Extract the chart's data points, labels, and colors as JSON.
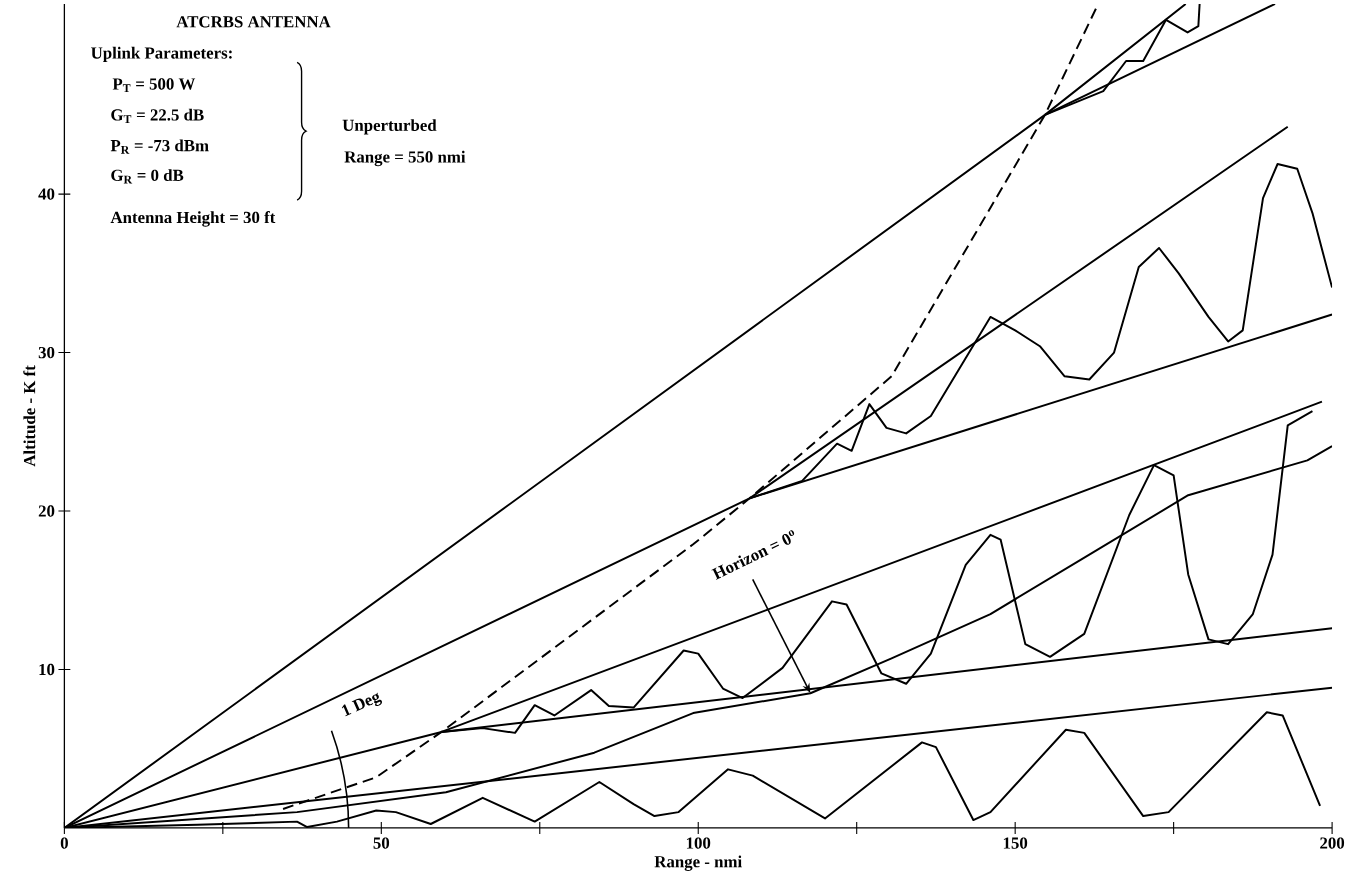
{
  "chart_data": {
    "type": "line",
    "title": "ATCRBS ANTENNA",
    "xlabel": "Range - nmi",
    "ylabel": "Altitude - K ft",
    "xlim": [
      0,
      200
    ],
    "ylim": [
      0,
      52
    ],
    "xticks": [
      0,
      {
        "value": 25,
        "label": null
      },
      50,
      {
        "value": 75,
        "label": null
      },
      100,
      {
        "value": 125,
        "label": null
      },
      150,
      {
        "value": 175,
        "label": null
      },
      200
    ],
    "yticks": [
      10,
      20,
      30,
      40
    ],
    "annotations": [
      "Uplink Parameters:",
      "P$_{T}$ = 500 W",
      "G$_{T}$ = 22.5 dB",
      "P$_{R}$ = -73 dBm",
      "G$_{R}$ = 0 dB",
      "Antenna Height = 30 ft",
      "Unperturbed",
      "Range = 550 nmi",
      "1 Deg",
      {
        "text": "Horizon = 0$^{o}$",
        "x": 117.7,
        "y": 8.5
      }
    ],
    "series": [
      {
        "color": "#000000",
        "x": [
          0,
          154.7,
          176.9
        ],
        "values": [
          0,
          45,
          52
        ]
      },
      {
        "color": "#000000",
        "x": [
          0,
          108.1,
          193
        ],
        "values": [
          0,
          20.8,
          44.25
        ]
      },
      {
        "color": "#000000",
        "x": [
          154.7,
          191
        ],
        "values": [
          45,
          52
        ]
      },
      {
        "color": "#000000",
        "x": [
          154.7,
          163.9,
          167.5,
          170.2,
          173.8,
          177.2,
          178.9,
          179.1
        ],
        "values": [
          45,
          46.5,
          48.4,
          48.4,
          51.0,
          50.2,
          50.6,
          52
        ]
      },
      {
        "color": "#000000",
        "x": [
          108.1,
          200
        ],
        "values": [
          20.8,
          32.4
        ]
      },
      {
        "color": "#000000",
        "x": [
          108.1,
          116.4,
          121.9,
          124.2,
          127,
          129.7,
          132.8,
          136.7,
          146.1,
          150,
          153.9,
          157.8,
          161.7,
          165.6,
          169.5,
          172.7,
          175.8,
          180.5,
          183.6,
          185.9,
          189.1,
          191.4,
          194.5,
          196.9,
          200
        ],
        "values": [
          20.8,
          21.9,
          24.25,
          23.8,
          26.75,
          25.25,
          24.9,
          26,
          32.25,
          31.4,
          30.4,
          28.5,
          28.3,
          30,
          35.4,
          36.6,
          35,
          32.25,
          30.7,
          31.4,
          39.75,
          41.9,
          41.6,
          38.8,
          34.1
        ]
      },
      {
        "color": "#000000",
        "x": [
          0,
          59.5,
          198.4
        ],
        "values": [
          0,
          6.06,
          26.9
        ]
      },
      {
        "color": "#000000",
        "x": [
          59.5,
          200
        ],
        "values": [
          6.06,
          12.6
        ]
      },
      {
        "color": "#000000",
        "x": [
          59.5,
          66,
          71.1,
          74.2,
          77.3,
          83.1,
          85.9,
          89.8,
          97.7,
          100,
          103.9,
          107,
          113.3,
          121.1,
          123.4,
          128.9,
          132.8,
          136.7,
          142.2,
          146.1,
          147.7,
          151.6,
          155.5,
          160.9,
          168,
          171.9,
          175,
          177.3,
          180.5,
          183.6,
          187.5,
          190.6,
          193,
          196.9
        ],
        "values": [
          6.06,
          6.3,
          6,
          7.75,
          7.1,
          8.7,
          7.7,
          7.6,
          11.2,
          11,
          8.8,
          8.2,
          10.1,
          14.3,
          14.1,
          9.75,
          9.1,
          11,
          16.6,
          18.5,
          18.2,
          11.6,
          10.8,
          12.25,
          19.75,
          22.9,
          22.25,
          16,
          11.9,
          11.6,
          13.5,
          17.25,
          25.4,
          26.3
        ]
      },
      {
        "color": "#000000",
        "x": [
          0,
          36.7,
          60.2,
          83.6,
          99.2,
          117.7,
          130.5,
          146.1,
          161.7,
          177.3,
          196.1,
          200
        ],
        "values": [
          0,
          1,
          2.25,
          4.75,
          7.25,
          8.5,
          10.7,
          13.5,
          17.25,
          21,
          23.2,
          24.1
        ]
      },
      {
        "color": "#000000",
        "x": [
          0,
          200
        ],
        "values": [
          0,
          8.85
        ]
      },
      {
        "color": "#000000",
        "x": [
          0,
          21,
          36.7,
          38.3,
          43,
          49.2,
          52.3,
          57.8,
          66,
          74.2,
          84.4,
          89.8,
          93.1,
          96.9,
          104.7,
          108.6,
          120,
          135.3,
          137.5,
          143.4,
          146.1,
          158,
          160.9,
          170.2,
          174.2,
          189.7,
          192.2,
          198.1
        ],
        "values": [
          0,
          0.2,
          0.4,
          0.06,
          0.4,
          1.1,
          1,
          0.25,
          1.9,
          0.4,
          2.9,
          1.5,
          0.75,
          1,
          3.7,
          3.3,
          0.6,
          5.4,
          5.1,
          0.5,
          1,
          6.2,
          6,
          0.75,
          1,
          7.3,
          7.1,
          1.4
        ]
      },
      {
        "color": "#000000",
        "x": [
          34.5,
          49.2,
          59.5,
          99.2,
          108.1,
          130.5,
          154.7,
          163.1
        ],
        "values": [
          1.2,
          3.2,
          6.06,
          17.9,
          20.8,
          28.5,
          45,
          52
        ],
        "line_style": "dashed"
      }
    ]
  }
}
